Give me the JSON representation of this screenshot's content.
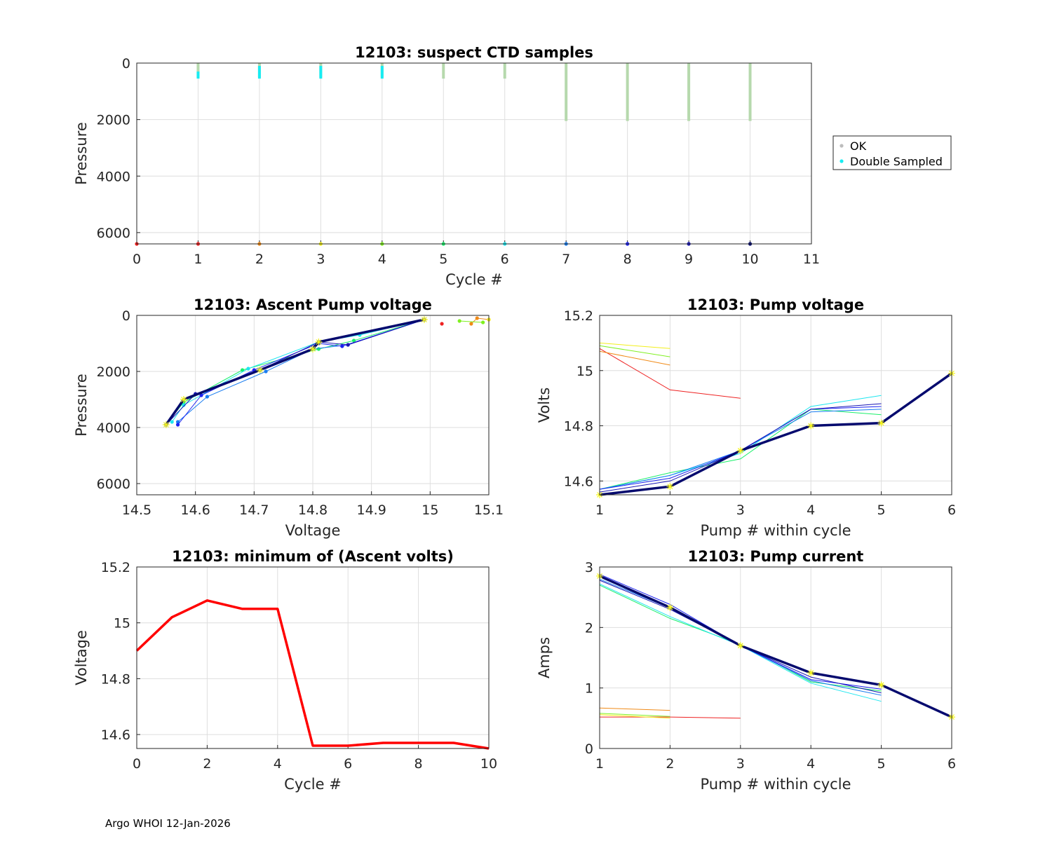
{
  "footer": "Argo WHOI 12-Jan-2026",
  "palette": {
    "cycles": [
      "#ee1c1c",
      "#ee2222",
      "#f08a17",
      "#f2ef1a",
      "#7ff01f",
      "#19f06a",
      "#1ee6ef",
      "#1a7df0",
      "#1c22f0",
      "#1a16b5",
      "#050a6e"
    ],
    "ok": "#b6d9ad",
    "double_sampled": "#17ecf2",
    "marker": "#f5f51a",
    "min_volts_line": "#ff0000"
  },
  "chart_data": [
    {
      "id": "ctd",
      "type": "scatter",
      "title": "12103: suspect CTD samples",
      "xlabel": "Cycle #",
      "ylabel": "Pressure",
      "xlim": [
        0,
        11
      ],
      "ylim": [
        0,
        6400
      ],
      "y_reversed": true,
      "grid": true,
      "xticks": [
        "0",
        "1",
        "2",
        "3",
        "4",
        "5",
        "6",
        "7",
        "8",
        "9",
        "10",
        "11"
      ],
      "yticks": [
        "0",
        "2000",
        "4000",
        "6000"
      ],
      "legend": {
        "placement": "outside-right",
        "entries": [
          "OK",
          "Double Sampled"
        ]
      },
      "ok_samples": [
        {
          "cycle": 1,
          "p_top": 0,
          "p_bottom": 500
        },
        {
          "cycle": 2,
          "p_top": 0,
          "p_bottom": 500
        },
        {
          "cycle": 3,
          "p_top": 0,
          "p_bottom": 500
        },
        {
          "cycle": 4,
          "p_top": 0,
          "p_bottom": 500
        },
        {
          "cycle": 5,
          "p_top": 0,
          "p_bottom": 550
        },
        {
          "cycle": 6,
          "p_top": 0,
          "p_bottom": 550
        },
        {
          "cycle": 7,
          "p_top": 0,
          "p_bottom": 2050
        },
        {
          "cycle": 8,
          "p_top": 0,
          "p_bottom": 2050
        },
        {
          "cycle": 9,
          "p_top": 0,
          "p_bottom": 2050
        },
        {
          "cycle": 10,
          "p_top": 0,
          "p_bottom": 2050
        }
      ],
      "double_sampled": [
        {
          "cycle": 1,
          "p_top": 300,
          "p_bottom": 550
        },
        {
          "cycle": 2,
          "p_top": 100,
          "p_bottom": 550
        },
        {
          "cycle": 3,
          "p_top": 100,
          "p_bottom": 550
        },
        {
          "cycle": 4,
          "p_top": 100,
          "p_bottom": 550
        }
      ],
      "bottom_markers": [
        0,
        1,
        2,
        3,
        4,
        5,
        6,
        7,
        8,
        9,
        10
      ],
      "bottom_marker_pressure": 6400
    },
    {
      "id": "ascent",
      "type": "line",
      "title": "12103: Ascent Pump voltage",
      "xlabel": "Voltage",
      "ylabel": "Pressure",
      "xlim": [
        14.5,
        15.1
      ],
      "ylim": [
        0,
        6400
      ],
      "y_reversed": true,
      "grid": true,
      "xticks": [
        "14.5",
        "14.6",
        "14.7",
        "14.8",
        "14.9",
        "15",
        "15.1"
      ],
      "yticks": [
        "0",
        "2000",
        "4000",
        "6000"
      ],
      "series": [
        {
          "cycle": 1,
          "points": [
            [
              15.02,
              300
            ]
          ]
        },
        {
          "cycle": 2,
          "points": [
            [
              15.1,
              150
            ],
            [
              15.08,
              100
            ],
            [
              15.07,
              300
            ]
          ]
        },
        {
          "cycle": 3,
          "points": [
            [
              15.1,
              150
            ]
          ]
        },
        {
          "cycle": 4,
          "points": [
            [
              15.05,
              200
            ],
            [
              15.09,
              250
            ]
          ]
        },
        {
          "cycle": 5,
          "points": [
            [
              14.99,
              150
            ],
            [
              14.87,
              900
            ],
            [
              14.81,
              1200
            ],
            [
              14.68,
              1950
            ],
            [
              14.58,
              3100
            ],
            [
              14.55,
              3900
            ]
          ]
        },
        {
          "cycle": 6,
          "points": [
            [
              14.99,
              150
            ],
            [
              14.88,
              700
            ],
            [
              14.81,
              950
            ],
            [
              14.69,
              1900
            ],
            [
              14.58,
              3200
            ],
            [
              14.56,
              3800
            ]
          ]
        },
        {
          "cycle": 7,
          "points": [
            [
              14.99,
              150
            ],
            [
              14.86,
              1050
            ],
            [
              14.8,
              1200
            ],
            [
              14.72,
              2000
            ],
            [
              14.62,
              2900
            ],
            [
              14.57,
              3800
            ]
          ]
        },
        {
          "cycle": 8,
          "points": [
            [
              14.99,
              150
            ],
            [
              14.85,
              1100
            ],
            [
              14.81,
              1000
            ],
            [
              14.7,
              1950
            ],
            [
              14.61,
              2850
            ],
            [
              14.57,
              3900
            ]
          ]
        },
        {
          "cycle": 9,
          "points": [
            [
              14.99,
              150
            ],
            [
              14.86,
              1050
            ],
            [
              14.81,
              950
            ],
            [
              14.71,
              1950
            ],
            [
              14.6,
              2800
            ],
            [
              14.55,
              3900
            ]
          ]
        },
        {
          "cycle": 10,
          "points": [
            [
              14.99,
              150
            ],
            [
              14.81,
              950
            ],
            [
              14.8,
              1200
            ],
            [
              14.71,
              1950
            ],
            [
              14.58,
              3000
            ],
            [
              14.55,
              3900
            ]
          ],
          "bold": true
        }
      ]
    },
    {
      "id": "pumpv",
      "type": "line",
      "title": "12103: Pump voltage",
      "xlabel": "Pump # within cycle",
      "ylabel": "Volts",
      "xlim": [
        1,
        6
      ],
      "ylim": [
        14.55,
        15.2
      ],
      "grid": true,
      "xticks": [
        "1",
        "2",
        "3",
        "4",
        "5",
        "6"
      ],
      "yticks": [
        "14.6",
        "14.8",
        "15",
        "15.2"
      ],
      "series": [
        {
          "cycle": 1,
          "points": [
            [
              1,
              15.08
            ],
            [
              2,
              14.93
            ],
            [
              3,
              14.9
            ]
          ]
        },
        {
          "cycle": 2,
          "points": [
            [
              1,
              15.07
            ],
            [
              2,
              15.02
            ]
          ]
        },
        {
          "cycle": 3,
          "points": [
            [
              1,
              15.1
            ],
            [
              2,
              15.08
            ]
          ]
        },
        {
          "cycle": 4,
          "points": [
            [
              1,
              15.09
            ],
            [
              2,
              15.05
            ]
          ]
        },
        {
          "cycle": 5,
          "points": [
            [
              1,
              14.57
            ],
            [
              2,
              14.63
            ],
            [
              3,
              14.68
            ],
            [
              4,
              14.86
            ],
            [
              5,
              14.84
            ]
          ]
        },
        {
          "cycle": 6,
          "points": [
            [
              1,
              14.57
            ],
            [
              2,
              14.62
            ],
            [
              3,
              14.7
            ],
            [
              4,
              14.87
            ],
            [
              5,
              14.91
            ]
          ]
        },
        {
          "cycle": 7,
          "points": [
            [
              1,
              14.57
            ],
            [
              2,
              14.62
            ],
            [
              3,
              14.71
            ],
            [
              4,
              14.85
            ],
            [
              5,
              14.86
            ]
          ]
        },
        {
          "cycle": 8,
          "points": [
            [
              1,
              14.57
            ],
            [
              2,
              14.61
            ],
            [
              3,
              14.71
            ],
            [
              4,
              14.86
            ],
            [
              5,
              14.87
            ]
          ]
        },
        {
          "cycle": 9,
          "points": [
            [
              1,
              14.56
            ],
            [
              2,
              14.6
            ],
            [
              3,
              14.71
            ],
            [
              4,
              14.86
            ],
            [
              5,
              14.88
            ]
          ]
        },
        {
          "cycle": 10,
          "points": [
            [
              1,
              14.55
            ],
            [
              2,
              14.58
            ],
            [
              3,
              14.71
            ],
            [
              4,
              14.8
            ],
            [
              5,
              14.81
            ],
            [
              6,
              14.99
            ]
          ],
          "bold": true
        }
      ]
    },
    {
      "id": "minv",
      "type": "line",
      "title": "12103: minimum of (Ascent volts)",
      "xlabel": "Cycle #",
      "ylabel": "Voltage",
      "xlim": [
        0,
        10
      ],
      "ylim": [
        14.55,
        15.2
      ],
      "grid": true,
      "xticks": [
        "0",
        "2",
        "4",
        "6",
        "8",
        "10"
      ],
      "yticks": [
        "14.6",
        "14.8",
        "15",
        "15.2"
      ],
      "x": [
        0,
        1,
        2,
        3,
        4,
        5,
        6,
        7,
        8,
        9,
        10
      ],
      "values": [
        14.9,
        15.02,
        15.08,
        15.05,
        15.05,
        14.56,
        14.56,
        14.57,
        14.57,
        14.57,
        14.55
      ]
    },
    {
      "id": "pumpc",
      "type": "line",
      "title": "12103: Pump current",
      "xlabel": "Pump # within cycle",
      "ylabel": "Amps",
      "xlim": [
        1,
        6
      ],
      "ylim": [
        0,
        3
      ],
      "grid": true,
      "xticks": [
        "1",
        "2",
        "3",
        "4",
        "5",
        "6"
      ],
      "yticks": [
        "0",
        "1",
        "2",
        "3"
      ],
      "series": [
        {
          "cycle": 1,
          "points": [
            [
              1,
              0.52
            ],
            [
              2,
              0.52
            ],
            [
              3,
              0.5
            ]
          ]
        },
        {
          "cycle": 2,
          "points": [
            [
              1,
              0.67
            ],
            [
              2,
              0.63
            ]
          ]
        },
        {
          "cycle": 3,
          "points": [
            [
              1,
              0.56
            ],
            [
              2,
              0.5
            ]
          ]
        },
        {
          "cycle": 4,
          "points": [
            [
              1,
              0.58
            ],
            [
              2,
              0.53
            ]
          ]
        },
        {
          "cycle": 5,
          "points": [
            [
              1,
              2.7
            ],
            [
              2,
              2.15
            ],
            [
              3,
              1.72
            ],
            [
              4,
              1.1
            ],
            [
              5,
              0.95
            ]
          ]
        },
        {
          "cycle": 6,
          "points": [
            [
              1,
              2.72
            ],
            [
              2,
              2.18
            ],
            [
              3,
              1.7
            ],
            [
              4,
              1.08
            ],
            [
              5,
              0.78
            ]
          ]
        },
        {
          "cycle": 7,
          "points": [
            [
              1,
              2.8
            ],
            [
              2,
              2.32
            ],
            [
              3,
              1.7
            ],
            [
              4,
              1.12
            ],
            [
              5,
              0.88
            ]
          ]
        },
        {
          "cycle": 8,
          "points": [
            [
              1,
              2.88
            ],
            [
              2,
              2.38
            ],
            [
              3,
              1.7
            ],
            [
              4,
              1.14
            ],
            [
              5,
              0.98
            ]
          ]
        },
        {
          "cycle": 9,
          "points": [
            [
              1,
              2.78
            ],
            [
              2,
              2.3
            ],
            [
              3,
              1.7
            ],
            [
              4,
              1.18
            ],
            [
              5,
              0.92
            ]
          ]
        },
        {
          "cycle": 10,
          "points": [
            [
              1,
              2.85
            ],
            [
              2,
              2.33
            ],
            [
              3,
              1.7
            ],
            [
              4,
              1.25
            ],
            [
              5,
              1.05
            ],
            [
              6,
              0.52
            ]
          ],
          "bold": true
        }
      ]
    }
  ]
}
